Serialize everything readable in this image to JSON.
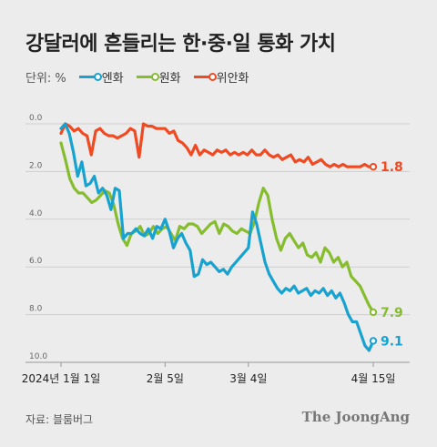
{
  "title": "강달러에 흔들리는 한·중·일 통화 가치",
  "unit_label": "단위: %",
  "source": "자료: 블룸버그",
  "brand": "The JoongAng",
  "chart_data": {
    "type": "line",
    "ylim": [
      0,
      10
    ],
    "y_inverted": true,
    "y_ticks": [
      "0.0",
      "2.0",
      "4.0",
      "6.0",
      "8.0",
      "10.0"
    ],
    "x_ticks": [
      "2024년 1월 1일",
      "2월 5일",
      "3월 4일",
      "4월 15일"
    ],
    "x_tick_index": [
      0,
      25,
      45,
      75
    ],
    "grid": true,
    "legend_position": "top-left",
    "series": [
      {
        "name": "엔화",
        "color": "#17a2d0",
        "end_label": "9.1",
        "values": [
          0.2,
          0,
          0.4,
          1.2,
          2.2,
          1.6,
          2.6,
          2.5,
          2.2,
          2.9,
          2.7,
          3.0,
          3.6,
          2.7,
          2.8,
          4.8,
          4.6,
          4.6,
          4.4,
          4.6,
          4.7,
          4.4,
          4.8,
          4.3,
          4.4,
          4.0,
          4.5,
          5.2,
          4.8,
          4.6,
          5.0,
          5.3,
          6.4,
          6.3,
          5.7,
          5.9,
          5.8,
          6.0,
          6.2,
          6.1,
          6.3,
          6.0,
          5.8,
          5.6,
          5.4,
          5.2,
          3.7,
          4.2,
          5.0,
          5.8,
          6.3,
          6.6,
          6.9,
          7.1,
          6.9,
          7.0,
          6.8,
          7.1,
          7.0,
          6.9,
          7.2,
          7.0,
          7.1,
          6.9,
          7.2,
          7.0,
          7.3,
          7.1,
          7.5,
          8.0,
          8.3,
          8.3,
          8.8,
          9.3,
          9.5,
          9.1
        ]
      },
      {
        "name": "원화",
        "color": "#86bd2e",
        "end_label": "7.9",
        "values": [
          0.8,
          1.5,
          2.3,
          2.7,
          2.9,
          2.9,
          3.1,
          3.3,
          3.2,
          3.0,
          2.8,
          2.9,
          3.4,
          4.2,
          4.8,
          5.1,
          4.6,
          4.5,
          4.3,
          4.7,
          4.6,
          4.3,
          4.6,
          4.4,
          4.3,
          4.6,
          4.9,
          4.3,
          4.4,
          4.2,
          4.2,
          4.3,
          4.6,
          4.4,
          4.2,
          4.1,
          4.6,
          4.2,
          4.3,
          4.5,
          4.6,
          4.4,
          4.5,
          4.6,
          4.1,
          3.3,
          2.7,
          3.0,
          4.0,
          4.8,
          5.3,
          4.8,
          4.6,
          4.9,
          5.2,
          5.0,
          5.5,
          5.6,
          5.4,
          5.8,
          5.2,
          5.4,
          5.8,
          5.6,
          6.0,
          5.8,
          6.4,
          6.6,
          6.8,
          7.2,
          7.6,
          7.9
        ]
      },
      {
        "name": "위안화",
        "color": "#f04a23",
        "end_label": "1.8",
        "values": [
          0.4,
          0,
          0.1,
          0.3,
          0.2,
          0.4,
          0.5,
          1.3,
          0.3,
          0.2,
          0.4,
          0.5,
          0.5,
          0.6,
          0.5,
          0.4,
          0.2,
          0.3,
          1.4,
          0,
          0.1,
          0.1,
          0.2,
          0.2,
          0.2,
          0.4,
          0.3,
          0.7,
          0.8,
          1.0,
          1.3,
          0.9,
          1.3,
          1.1,
          1.2,
          1.3,
          1.1,
          1.2,
          1.1,
          1.3,
          1.2,
          1.3,
          1.2,
          1.3,
          1.1,
          1.3,
          1.3,
          1.1,
          1.3,
          1.4,
          1.3,
          1.5,
          1.4,
          1.3,
          1.6,
          1.5,
          1.6,
          1.4,
          1.7,
          1.6,
          1.5,
          1.7,
          1.8,
          1.7,
          1.8,
          1.7,
          1.8,
          1.8,
          1.8,
          1.8,
          1.7,
          1.8,
          1.8
        ]
      }
    ]
  }
}
